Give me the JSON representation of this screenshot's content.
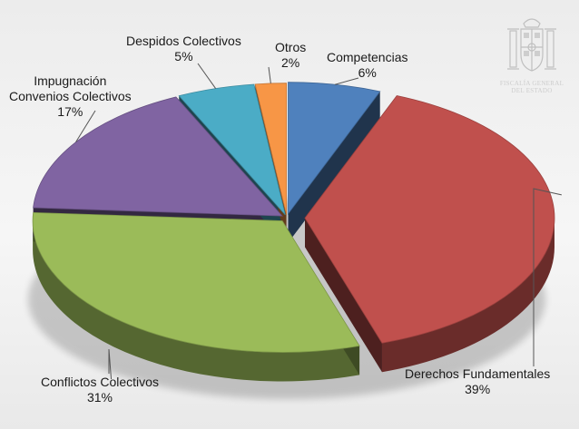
{
  "chart_data": {
    "type": "pie",
    "style": "3d-exploded",
    "title": "",
    "legend": "none",
    "slices": [
      {
        "category": "Competencias",
        "percent_label": "6%",
        "value": 6,
        "color": "#4f81bd"
      },
      {
        "category": "Derechos Fundamentales",
        "percent_label": "39%",
        "value": 39,
        "color": "#c0504d"
      },
      {
        "category": "Conflictos Colectivos",
        "percent_label": "31%",
        "value": 31,
        "color": "#9bbb59"
      },
      {
        "category": "Impugnación Convenios Colectivos",
        "category_lines": [
          "Impugnación",
          "Convenios Colectivos"
        ],
        "percent_label": "17%",
        "value": 17,
        "color": "#8064a2"
      },
      {
        "category": "Despidos Colectivos",
        "percent_label": "5%",
        "value": 5,
        "color": "#4bacc6"
      },
      {
        "category": "Otros",
        "percent_label": "2%",
        "value": 2,
        "color": "#f79646"
      }
    ]
  },
  "logo": {
    "name": "escudo-de-espana",
    "text_lines": [
      "FISCALÍA GENERAL",
      "DEL ESTADO"
    ]
  }
}
